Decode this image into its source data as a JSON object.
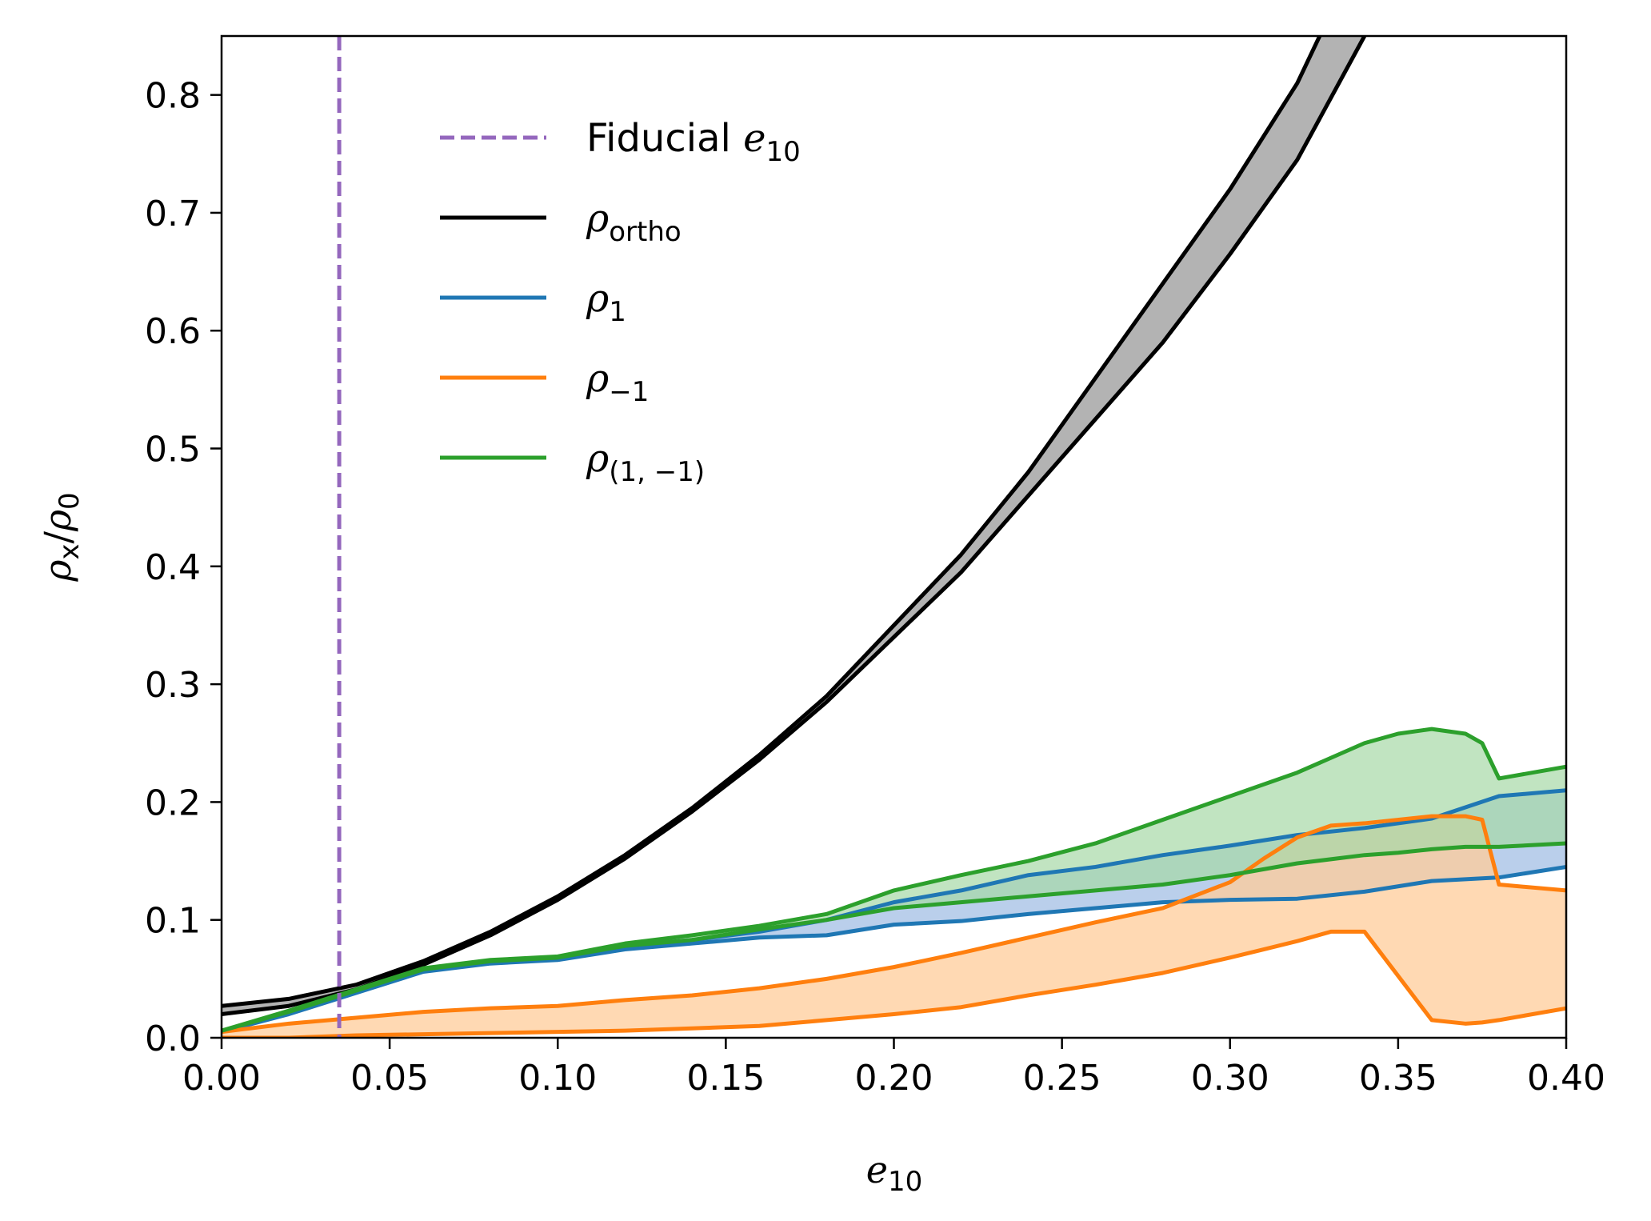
{
  "chart_data": {
    "type": "line",
    "xlabel": {
      "base": "e",
      "sub": "10"
    },
    "ylabel": {
      "base": "ρ",
      "sub": "x",
      "sep": "/",
      "base2": "ρ",
      "sub2": "0"
    },
    "xlim": [
      0,
      0.4
    ],
    "ylim": [
      0,
      0.85
    ],
    "xticks": [
      0.0,
      0.05,
      0.1,
      0.15,
      0.2,
      0.25,
      0.3,
      0.35,
      0.4
    ],
    "xtick_labels": [
      "0.00",
      "0.05",
      "0.10",
      "0.15",
      "0.20",
      "0.25",
      "0.30",
      "0.35",
      "0.40"
    ],
    "yticks": [
      0.0,
      0.1,
      0.2,
      0.3,
      0.4,
      0.5,
      0.6,
      0.7,
      0.8
    ],
    "ytick_labels": [
      "0.0",
      "0.1",
      "0.2",
      "0.3",
      "0.4",
      "0.5",
      "0.6",
      "0.7",
      "0.8"
    ],
    "grid": false,
    "legend_position": "upper-left",
    "vline": {
      "x": 0.035,
      "color": "#9467bd",
      "style": "dashed"
    },
    "legend": [
      {
        "key": "fiducial",
        "text": "Fiducial ",
        "math": "e",
        "sub": "10",
        "color": "#9467bd",
        "style": "dashed"
      },
      {
        "key": "ortho",
        "text": "",
        "math": "ρ",
        "sub": "ortho",
        "color": "#000000",
        "style": "solid"
      },
      {
        "key": "rho1",
        "text": "",
        "math": "ρ",
        "sub": "1",
        "color": "#1f77b4",
        "style": "solid"
      },
      {
        "key": "rhom1",
        "text": "",
        "math": "ρ",
        "sub": "−1",
        "color": "#ff7f0e",
        "style": "solid"
      },
      {
        "key": "rho1m1",
        "text": "",
        "math": "ρ",
        "sub": "(1, −1)",
        "color": "#2ca02c",
        "style": "solid"
      }
    ],
    "series": [
      {
        "key": "ortho",
        "color": "#000000",
        "fill": "#b3b3b3",
        "fill_opacity": 1.0,
        "x": [
          0.0,
          0.02,
          0.04,
          0.06,
          0.08,
          0.1,
          0.12,
          0.14,
          0.16,
          0.18,
          0.2,
          0.22,
          0.24,
          0.26,
          0.28,
          0.3,
          0.32,
          0.34
        ],
        "upper": [
          0.027,
          0.033,
          0.045,
          0.065,
          0.09,
          0.12,
          0.155,
          0.195,
          0.24,
          0.29,
          0.35,
          0.41,
          0.48,
          0.56,
          0.64,
          0.72,
          0.81,
          0.93
        ],
        "lower": [
          0.02,
          0.027,
          0.041,
          0.062,
          0.087,
          0.117,
          0.152,
          0.192,
          0.236,
          0.285,
          0.34,
          0.395,
          0.46,
          0.525,
          0.59,
          0.665,
          0.745,
          0.85
        ]
      },
      {
        "key": "rho1",
        "color": "#1f77b4",
        "fill": "#aec7e8",
        "fill_opacity": 0.85,
        "x": [
          0.0,
          0.02,
          0.04,
          0.06,
          0.08,
          0.1,
          0.12,
          0.14,
          0.16,
          0.18,
          0.2,
          0.22,
          0.24,
          0.26,
          0.28,
          0.3,
          0.32,
          0.34,
          0.36,
          0.38,
          0.4
        ],
        "upper": [
          0.005,
          0.022,
          0.04,
          0.058,
          0.065,
          0.068,
          0.078,
          0.083,
          0.09,
          0.1,
          0.115,
          0.125,
          0.138,
          0.145,
          0.155,
          0.163,
          0.172,
          0.178,
          0.186,
          0.205,
          0.21
        ],
        "lower": [
          0.005,
          0.02,
          0.038,
          0.056,
          0.063,
          0.066,
          0.075,
          0.08,
          0.085,
          0.087,
          0.096,
          0.099,
          0.105,
          0.11,
          0.115,
          0.117,
          0.118,
          0.124,
          0.133,
          0.136,
          0.145
        ]
      },
      {
        "key": "rhom1",
        "color": "#ff7f0e",
        "fill": "#ffcc99",
        "fill_opacity": 0.75,
        "x": [
          0.0,
          0.02,
          0.04,
          0.06,
          0.08,
          0.1,
          0.12,
          0.14,
          0.16,
          0.18,
          0.2,
          0.22,
          0.24,
          0.26,
          0.28,
          0.3,
          0.31,
          0.32,
          0.33,
          0.34,
          0.36,
          0.37,
          0.375,
          0.38,
          0.4
        ],
        "upper": [
          0.005,
          0.012,
          0.017,
          0.022,
          0.025,
          0.027,
          0.032,
          0.036,
          0.042,
          0.05,
          0.06,
          0.072,
          0.085,
          0.098,
          0.11,
          0.132,
          0.152,
          0.17,
          0.18,
          0.182,
          0.188,
          0.188,
          0.185,
          0.13,
          0.125
        ],
        "lower": [
          0.0,
          0.0,
          0.002,
          0.003,
          0.004,
          0.005,
          0.006,
          0.008,
          0.01,
          0.015,
          0.02,
          0.026,
          0.036,
          0.045,
          0.055,
          0.068,
          0.075,
          0.082,
          0.09,
          0.09,
          0.015,
          0.012,
          0.013,
          0.015,
          0.025
        ]
      },
      {
        "key": "rho1m1",
        "color": "#2ca02c",
        "fill": "#a6d8a6",
        "fill_opacity": 0.7,
        "x": [
          0.0,
          0.02,
          0.04,
          0.06,
          0.08,
          0.1,
          0.12,
          0.14,
          0.16,
          0.18,
          0.2,
          0.22,
          0.24,
          0.26,
          0.28,
          0.3,
          0.32,
          0.34,
          0.35,
          0.36,
          0.37,
          0.375,
          0.38,
          0.4
        ],
        "upper": [
          0.006,
          0.023,
          0.041,
          0.059,
          0.066,
          0.069,
          0.08,
          0.087,
          0.095,
          0.105,
          0.125,
          0.138,
          0.15,
          0.165,
          0.185,
          0.205,
          0.225,
          0.25,
          0.258,
          0.262,
          0.258,
          0.25,
          0.22,
          0.23
        ],
        "lower": [
          0.006,
          0.022,
          0.04,
          0.058,
          0.065,
          0.068,
          0.078,
          0.083,
          0.092,
          0.1,
          0.11,
          0.115,
          0.12,
          0.125,
          0.13,
          0.138,
          0.148,
          0.155,
          0.157,
          0.16,
          0.162,
          0.162,
          0.162,
          0.165
        ]
      }
    ]
  }
}
